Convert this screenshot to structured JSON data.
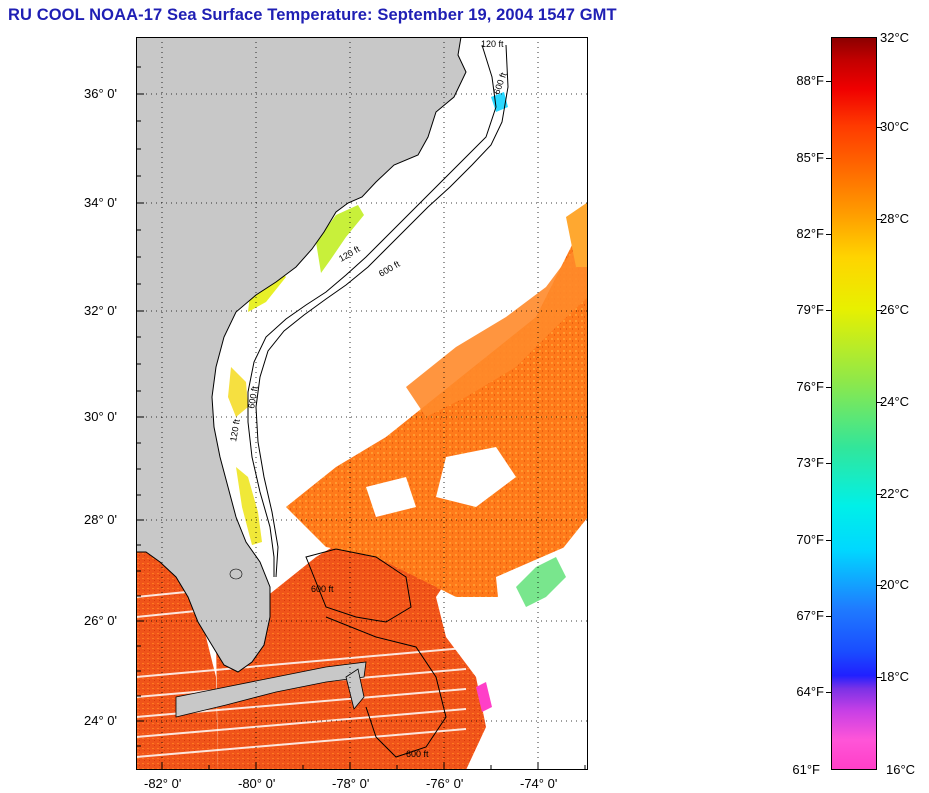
{
  "title": "RU COOL  NOAA-17  Sea Surface Temperature:  September 19, 2004 1547 GMT",
  "map": {
    "lat_labels": [
      "36° 0'",
      "34° 0'",
      "32° 0'",
      "30° 0'",
      "28° 0'",
      "26° 0'",
      "24° 0'"
    ],
    "lon_labels": [
      "-82° 0'",
      "-80° 0'",
      "-78° 0'",
      "-76° 0'",
      "-74° 0'"
    ],
    "isobath_labels": [
      "120 ft",
      "600 ft"
    ],
    "colors": {
      "land": "#c8c8c8",
      "cloud": "#ffffff",
      "warm_water": "#ff7a1a",
      "hot_water": "#f04a10",
      "mid_water": "#e8f000",
      "cool_water": "#2ad8ff",
      "cold_water": "#ff3fc8"
    }
  },
  "colorbar": {
    "fahrenheit_labels": [
      "88°F",
      "85°F",
      "82°F",
      "79°F",
      "76°F",
      "73°F",
      "70°F",
      "67°F",
      "64°F",
      "61°F"
    ],
    "celsius_labels": [
      "32°C",
      "30°C",
      "28°C",
      "26°C",
      "24°C",
      "22°C",
      "20°C",
      "18°C",
      "16°C"
    ]
  }
}
